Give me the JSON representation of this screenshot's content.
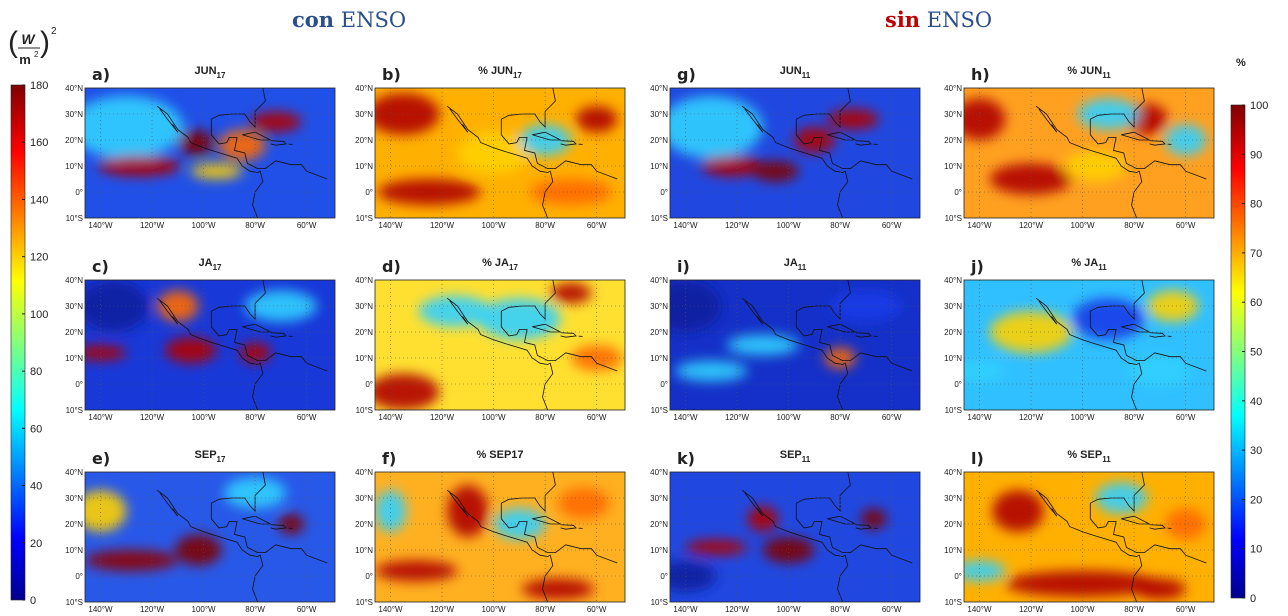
{
  "headers": [
    {
      "bold": "con",
      "rest": "ENSO"
    },
    {
      "bold": "sin",
      "rest": "ENSO"
    }
  ],
  "colorbars": [
    {
      "unit": {
        "numerator": "W",
        "denominator": "m",
        "denominator_power": "2",
        "power": "2"
      },
      "ticks": [
        0,
        20,
        40,
        60,
        80,
        100,
        120,
        140,
        160,
        180
      ]
    },
    {
      "unit": {
        "label": "%"
      },
      "ticks": [
        0,
        10,
        20,
        30,
        40,
        50,
        60,
        70,
        80,
        90,
        100
      ]
    }
  ],
  "lat_labels": [
    "40°N",
    "30°N",
    "20°N",
    "10°N",
    "0°",
    "10°S"
  ],
  "lon_labels": [
    "140°W",
    "120°W",
    "100°W",
    "80°W",
    "60°W"
  ],
  "panels": [
    {
      "letter": "a)",
      "title": "JUN",
      "subscript": "17"
    },
    {
      "letter": "b)",
      "title": "% JUN",
      "subscript": "17"
    },
    {
      "letter": "c)",
      "title": "JA",
      "subscript": "17"
    },
    {
      "letter": "d)",
      "title": "% JA",
      "subscript": "17"
    },
    {
      "letter": "e)",
      "title": "SEP",
      "subscript": "17"
    },
    {
      "letter": "f)",
      "title": "% SEP17"
    },
    {
      "letter": "g)",
      "title": "JUN",
      "subscript": "11"
    },
    {
      "letter": "h)",
      "title": "% JUN",
      "subscript": "11"
    },
    {
      "letter": "i)",
      "title": "JA",
      "subscript": "11"
    },
    {
      "letter": "j)",
      "title": "% JA",
      "subscript": "11"
    },
    {
      "letter": "k)",
      "title": "SEP",
      "subscript": "11"
    },
    {
      "letter": "l)",
      "title": "% SEP",
      "subscript": "11"
    }
  ]
}
